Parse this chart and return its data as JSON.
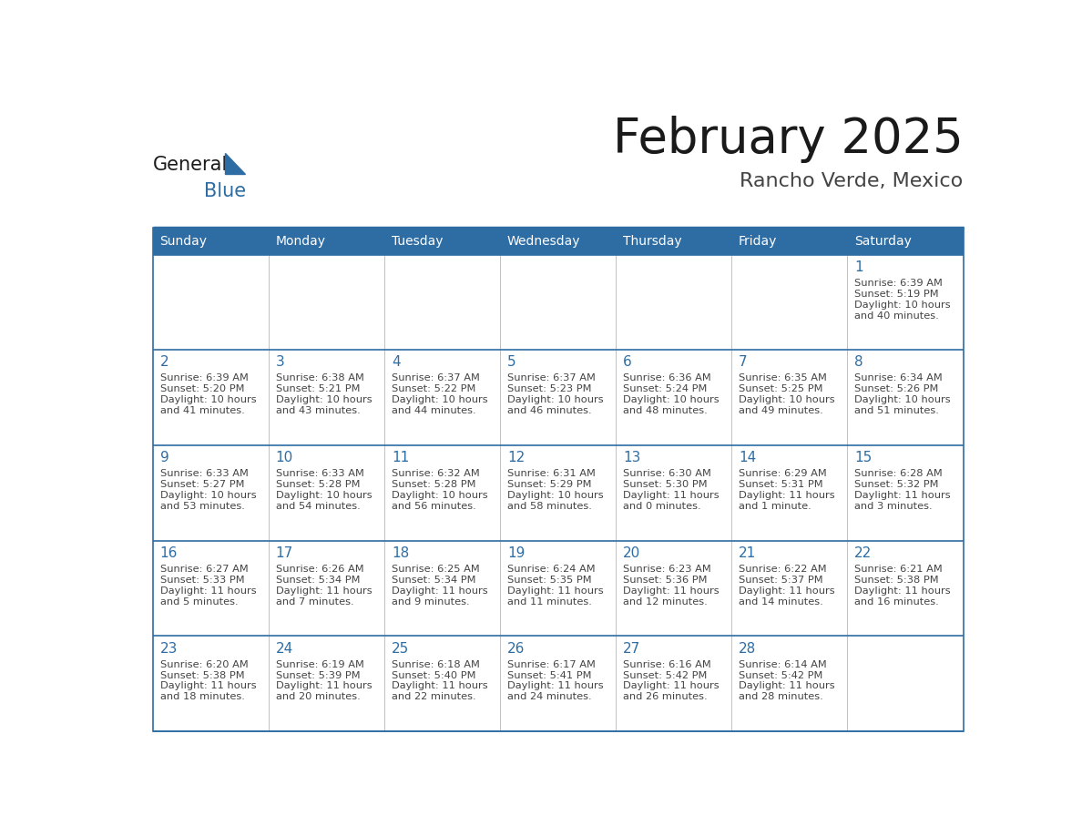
{
  "title": "February 2025",
  "subtitle": "Rancho Verde, Mexico",
  "header_bg": "#2E6DA4",
  "header_text": "#FFFFFF",
  "cell_bg": "#FFFFFF",
  "day_number_color": "#2E6DA4",
  "cell_text_color": "#444444",
  "line_color": "#2E6DA4",
  "grid_line_color": "#AAAAAA",
  "days_of_week": [
    "Sunday",
    "Monday",
    "Tuesday",
    "Wednesday",
    "Thursday",
    "Friday",
    "Saturday"
  ],
  "logo_general_color": "#1A1A1A",
  "logo_blue_color": "#2E6DA4",
  "logo_triangle_color": "#2E6DA4",
  "title_color": "#1A1A1A",
  "subtitle_color": "#444444",
  "calendar": [
    [
      null,
      null,
      null,
      null,
      null,
      null,
      {
        "day": "1",
        "sunrise": "6:39 AM",
        "sunset": "5:19 PM",
        "daylight_line1": "Daylight: 10 hours",
        "daylight_line2": "and 40 minutes."
      }
    ],
    [
      {
        "day": "2",
        "sunrise": "6:39 AM",
        "sunset": "5:20 PM",
        "daylight_line1": "Daylight: 10 hours",
        "daylight_line2": "and 41 minutes."
      },
      {
        "day": "3",
        "sunrise": "6:38 AM",
        "sunset": "5:21 PM",
        "daylight_line1": "Daylight: 10 hours",
        "daylight_line2": "and 43 minutes."
      },
      {
        "day": "4",
        "sunrise": "6:37 AM",
        "sunset": "5:22 PM",
        "daylight_line1": "Daylight: 10 hours",
        "daylight_line2": "and 44 minutes."
      },
      {
        "day": "5",
        "sunrise": "6:37 AM",
        "sunset": "5:23 PM",
        "daylight_line1": "Daylight: 10 hours",
        "daylight_line2": "and 46 minutes."
      },
      {
        "day": "6",
        "sunrise": "6:36 AM",
        "sunset": "5:24 PM",
        "daylight_line1": "Daylight: 10 hours",
        "daylight_line2": "and 48 minutes."
      },
      {
        "day": "7",
        "sunrise": "6:35 AM",
        "sunset": "5:25 PM",
        "daylight_line1": "Daylight: 10 hours",
        "daylight_line2": "and 49 minutes."
      },
      {
        "day": "8",
        "sunrise": "6:34 AM",
        "sunset": "5:26 PM",
        "daylight_line1": "Daylight: 10 hours",
        "daylight_line2": "and 51 minutes."
      }
    ],
    [
      {
        "day": "9",
        "sunrise": "6:33 AM",
        "sunset": "5:27 PM",
        "daylight_line1": "Daylight: 10 hours",
        "daylight_line2": "and 53 minutes."
      },
      {
        "day": "10",
        "sunrise": "6:33 AM",
        "sunset": "5:28 PM",
        "daylight_line1": "Daylight: 10 hours",
        "daylight_line2": "and 54 minutes."
      },
      {
        "day": "11",
        "sunrise": "6:32 AM",
        "sunset": "5:28 PM",
        "daylight_line1": "Daylight: 10 hours",
        "daylight_line2": "and 56 minutes."
      },
      {
        "day": "12",
        "sunrise": "6:31 AM",
        "sunset": "5:29 PM",
        "daylight_line1": "Daylight: 10 hours",
        "daylight_line2": "and 58 minutes."
      },
      {
        "day": "13",
        "sunrise": "6:30 AM",
        "sunset": "5:30 PM",
        "daylight_line1": "Daylight: 11 hours",
        "daylight_line2": "and 0 minutes."
      },
      {
        "day": "14",
        "sunrise": "6:29 AM",
        "sunset": "5:31 PM",
        "daylight_line1": "Daylight: 11 hours",
        "daylight_line2": "and 1 minute."
      },
      {
        "day": "15",
        "sunrise": "6:28 AM",
        "sunset": "5:32 PM",
        "daylight_line1": "Daylight: 11 hours",
        "daylight_line2": "and 3 minutes."
      }
    ],
    [
      {
        "day": "16",
        "sunrise": "6:27 AM",
        "sunset": "5:33 PM",
        "daylight_line1": "Daylight: 11 hours",
        "daylight_line2": "and 5 minutes."
      },
      {
        "day": "17",
        "sunrise": "6:26 AM",
        "sunset": "5:34 PM",
        "daylight_line1": "Daylight: 11 hours",
        "daylight_line2": "and 7 minutes."
      },
      {
        "day": "18",
        "sunrise": "6:25 AM",
        "sunset": "5:34 PM",
        "daylight_line1": "Daylight: 11 hours",
        "daylight_line2": "and 9 minutes."
      },
      {
        "day": "19",
        "sunrise": "6:24 AM",
        "sunset": "5:35 PM",
        "daylight_line1": "Daylight: 11 hours",
        "daylight_line2": "and 11 minutes."
      },
      {
        "day": "20",
        "sunrise": "6:23 AM",
        "sunset": "5:36 PM",
        "daylight_line1": "Daylight: 11 hours",
        "daylight_line2": "and 12 minutes."
      },
      {
        "day": "21",
        "sunrise": "6:22 AM",
        "sunset": "5:37 PM",
        "daylight_line1": "Daylight: 11 hours",
        "daylight_line2": "and 14 minutes."
      },
      {
        "day": "22",
        "sunrise": "6:21 AM",
        "sunset": "5:38 PM",
        "daylight_line1": "Daylight: 11 hours",
        "daylight_line2": "and 16 minutes."
      }
    ],
    [
      {
        "day": "23",
        "sunrise": "6:20 AM",
        "sunset": "5:38 PM",
        "daylight_line1": "Daylight: 11 hours",
        "daylight_line2": "and 18 minutes."
      },
      {
        "day": "24",
        "sunrise": "6:19 AM",
        "sunset": "5:39 PM",
        "daylight_line1": "Daylight: 11 hours",
        "daylight_line2": "and 20 minutes."
      },
      {
        "day": "25",
        "sunrise": "6:18 AM",
        "sunset": "5:40 PM",
        "daylight_line1": "Daylight: 11 hours",
        "daylight_line2": "and 22 minutes."
      },
      {
        "day": "26",
        "sunrise": "6:17 AM",
        "sunset": "5:41 PM",
        "daylight_line1": "Daylight: 11 hours",
        "daylight_line2": "and 24 minutes."
      },
      {
        "day": "27",
        "sunrise": "6:16 AM",
        "sunset": "5:42 PM",
        "daylight_line1": "Daylight: 11 hours",
        "daylight_line2": "and 26 minutes."
      },
      {
        "day": "28",
        "sunrise": "6:14 AM",
        "sunset": "5:42 PM",
        "daylight_line1": "Daylight: 11 hours",
        "daylight_line2": "and 28 minutes."
      },
      null
    ]
  ]
}
